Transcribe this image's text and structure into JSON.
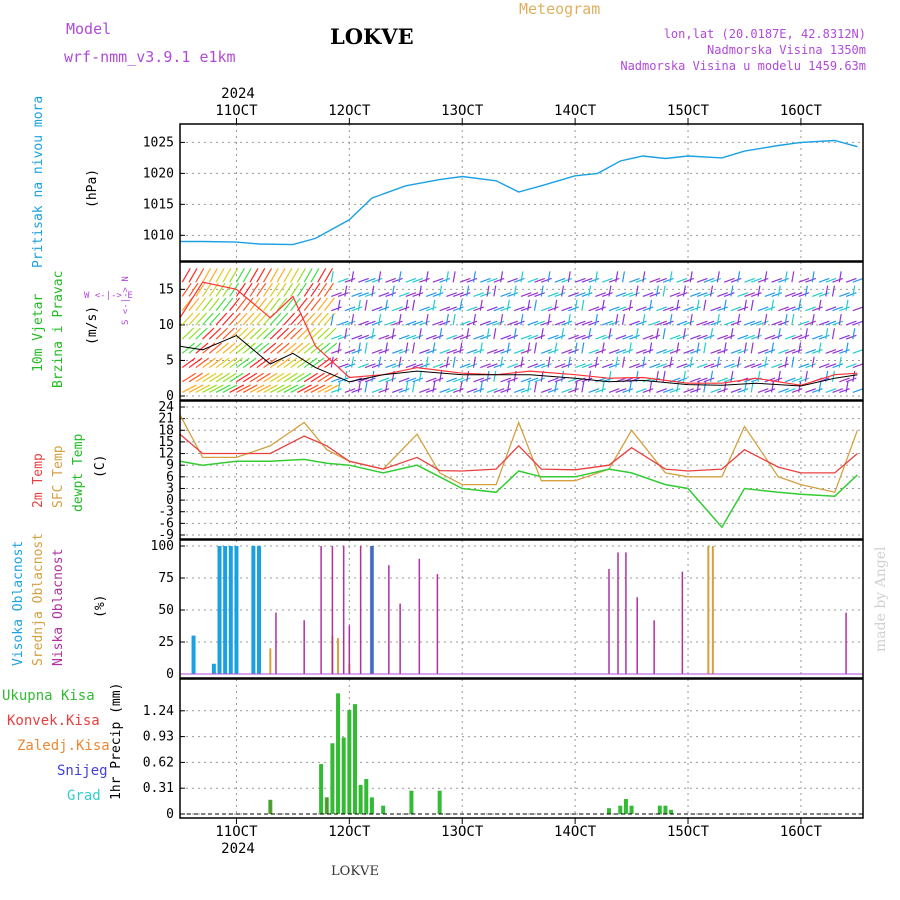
{
  "header": {
    "model_label": "Model",
    "model_name": "wrf-nmm_v3.9.1 e1km",
    "station": "LOKVE",
    "meteogram_label": "Meteogram",
    "coords": "lon,lat (20.0187E, 42.8312N)",
    "elevation": "Nadmorska Visina 1350m",
    "model_elevation": "Nadmorska Visina u modelu 1459.63m",
    "watermark": "made by Angel",
    "footer_station": "LOKVE"
  },
  "colors": {
    "pressure": "#1ba1e2",
    "wind_label": "#22bb22",
    "t2m": "#e84040",
    "sfc": "#d4a040",
    "dew": "#33cc33",
    "high_cloud": "#1ba1e2",
    "mid_cloud": "#d4a040",
    "low_cloud": "#b030a0",
    "total_precip": "#33bb33",
    "conv_precip": "#e84040",
    "freezing_precip": "#ee8833",
    "snow": "#4040dd",
    "hail": "#33cccc",
    "purple_text": "#b04adb",
    "tan_text": "#e0b060"
  },
  "time_axis": {
    "year": "2024",
    "ticks": [
      "11OCT",
      "12OCT",
      "13OCT",
      "14OCT",
      "15OCT",
      "16OCT"
    ]
  },
  "panels": {
    "pressure": {
      "title": "Pritisak na nivou mora",
      "unit": "(hPa)"
    },
    "wind": {
      "title1": "10m Vjetar",
      "title2": "Brzina i Pravac",
      "unit": "(m/s)",
      "compass": "W <-|-> E",
      "compass_ns": "S <-|-> N"
    },
    "temp": {
      "l1": "2m Temp",
      "l2": "SFC Temp",
      "l3": "dewpt Temp",
      "unit": "(C)"
    },
    "cloud": {
      "l1": "Visoka Oblacnost",
      "l2": "Srednja Oblacnost",
      "l3": "Niska Oblacnost",
      "unit": "(%)"
    },
    "precip": {
      "unit": "1hr Precip (mm)",
      "legend": [
        "Ukupna Kisa",
        "Konvek.Kisa",
        "Zaledj.Kisa",
        "Snijeg",
        "Grad"
      ]
    }
  },
  "chart_data": [
    {
      "type": "line",
      "name": "pressure",
      "ylabel": "(hPa)",
      "ylim": [
        1006.5,
        1027
      ],
      "yticks": [
        1010,
        1015,
        1020,
        1025
      ],
      "x": [
        10.5,
        10.7,
        11.0,
        11.2,
        11.5,
        11.7,
        12.0,
        12.2,
        12.5,
        12.8,
        13.0,
        13.3,
        13.5,
        13.7,
        14.0,
        14.2,
        14.4,
        14.6,
        14.8,
        15.0,
        15.3,
        15.5,
        15.8,
        16.0,
        16.3,
        16.5
      ],
      "values": [
        1009,
        1009,
        1008.9,
        1008.6,
        1008.5,
        1009.5,
        1012.5,
        1016,
        1018,
        1019,
        1019.5,
        1018.8,
        1017,
        1018,
        1019.6,
        1020,
        1022,
        1022.8,
        1022.4,
        1022.8,
        1022.5,
        1023.6,
        1024.5,
        1025,
        1025.3,
        1024.3
      ]
    },
    {
      "type": "line",
      "name": "wind",
      "ylabel": "(m/s)",
      "ylim": [
        0,
        18
      ],
      "yticks": [
        0,
        5,
        10,
        15
      ],
      "x": [
        10.5,
        10.7,
        11.0,
        11.3,
        11.5,
        11.7,
        12.0,
        12.3,
        12.6,
        13.0,
        13.3,
        13.6,
        14.0,
        14.3,
        14.6,
        15.0,
        15.3,
        15.6,
        16.0,
        16.3,
        16.5
      ],
      "mean": [
        7,
        6.5,
        8.5,
        4.5,
        6,
        4,
        2,
        3,
        3.5,
        3,
        3,
        3,
        2.5,
        2,
        2.2,
        1.6,
        1.5,
        1.8,
        1.4,
        2.5,
        3
      ],
      "gust": [
        11,
        16,
        15,
        11,
        14,
        7,
        2.6,
        3,
        4,
        3.2,
        3,
        3.5,
        3,
        2.5,
        2.6,
        1.8,
        1.8,
        2.5,
        1.5,
        3,
        3.2
      ]
    },
    {
      "type": "line",
      "name": "temperature",
      "ylabel": "(C)",
      "ylim": [
        -9,
        24
      ],
      "yticks": [
        -9,
        -6,
        -3,
        0,
        3,
        6,
        9,
        12,
        15,
        18,
        21,
        24
      ],
      "x": [
        10.5,
        10.7,
        11.0,
        11.3,
        11.6,
        11.8,
        12.0,
        12.3,
        12.6,
        12.8,
        13.0,
        13.3,
        13.5,
        13.7,
        14.0,
        14.3,
        14.5,
        14.8,
        15.0,
        15.3,
        15.5,
        15.8,
        16.0,
        16.3,
        16.5
      ],
      "t2m": [
        17,
        12,
        12,
        12,
        16.5,
        14,
        10,
        8,
        11,
        7.6,
        7.5,
        8,
        14,
        8,
        7.8,
        9,
        13.5,
        8,
        7.5,
        8,
        13,
        8.5,
        7,
        7,
        12
      ],
      "sfc": [
        22,
        11,
        11,
        14,
        20,
        13,
        10,
        8,
        17,
        7,
        4,
        4,
        20,
        5,
        5,
        8,
        18,
        7,
        6,
        6,
        19,
        6,
        4,
        2,
        18
      ],
      "dew": [
        10,
        9,
        10,
        10,
        10.5,
        9.5,
        9,
        7,
        9,
        6,
        3,
        2,
        7.5,
        6,
        6,
        8,
        7,
        4,
        3,
        -7,
        3,
        2,
        1.5,
        1,
        6.5
      ]
    },
    {
      "type": "bar",
      "name": "cloud_cover",
      "ylabel": "(%)",
      "ylim": [
        0,
        100
      ],
      "yticks": [
        0,
        25,
        50,
        75,
        100
      ],
      "high": [
        [
          10.62,
          30
        ],
        [
          10.8,
          8
        ],
        [
          10.85,
          100
        ],
        [
          10.9,
          100
        ],
        [
          10.95,
          100
        ],
        [
          11.0,
          100
        ],
        [
          11.15,
          100
        ],
        [
          11.2,
          100
        ],
        [
          12.2,
          100
        ]
      ],
      "mid": [
        [
          11.3,
          20
        ],
        [
          11.85,
          30
        ],
        [
          11.9,
          28
        ],
        [
          12.0,
          8
        ],
        [
          15.18,
          100
        ],
        [
          15.22,
          100
        ]
      ],
      "low": [
        [
          11.35,
          48
        ],
        [
          11.6,
          42
        ],
        [
          11.75,
          100
        ],
        [
          11.85,
          100
        ],
        [
          11.95,
          100
        ],
        [
          12.0,
          38
        ],
        [
          12.1,
          100
        ],
        [
          12.2,
          100
        ],
        [
          12.35,
          85
        ],
        [
          12.45,
          55
        ],
        [
          12.62,
          90
        ],
        [
          12.78,
          78
        ],
        [
          14.3,
          82
        ],
        [
          14.38,
          95
        ],
        [
          14.45,
          95
        ],
        [
          14.55,
          60
        ],
        [
          14.7,
          42
        ],
        [
          14.95,
          80
        ],
        [
          16.4,
          48
        ]
      ]
    },
    {
      "type": "bar",
      "name": "precipitation",
      "ylabel": "1hr Precip (mm)",
      "ylim": [
        0,
        1.55
      ],
      "yticks": [
        0,
        0.31,
        0.62,
        0.93,
        1.24
      ],
      "total": [
        [
          11.3,
          0.17
        ],
        [
          11.75,
          0.6
        ],
        [
          11.8,
          0.2
        ],
        [
          11.85,
          0.85
        ],
        [
          11.9,
          1.45
        ],
        [
          11.95,
          0.92
        ],
        [
          12.0,
          1.25
        ],
        [
          12.05,
          1.32
        ],
        [
          12.1,
          0.35
        ],
        [
          12.15,
          0.42
        ],
        [
          12.2,
          0.2
        ],
        [
          12.3,
          0.1
        ],
        [
          12.55,
          0.28
        ],
        [
          12.8,
          0.28
        ],
        [
          14.3,
          0.07
        ],
        [
          14.4,
          0.1
        ],
        [
          14.45,
          0.18
        ],
        [
          14.5,
          0.1
        ],
        [
          14.75,
          0.1
        ],
        [
          14.8,
          0.1
        ],
        [
          14.85,
          0.05
        ]
      ],
      "conv": [
        [
          11.3,
          0.17
        ],
        [
          11.8,
          0.2
        ]
      ]
    }
  ]
}
